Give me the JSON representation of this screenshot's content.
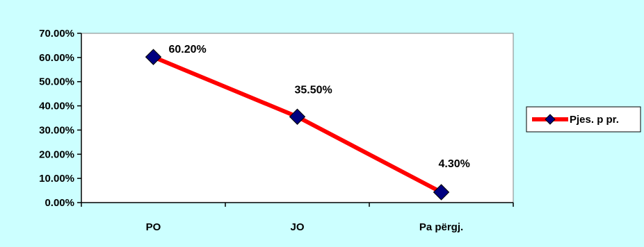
{
  "chart_data": {
    "type": "line",
    "categories": [
      "PO",
      "JO",
      "Pa përgj."
    ],
    "series": [
      {
        "name": "Pjes. p pr.",
        "values": [
          60.2,
          35.5,
          4.3
        ],
        "data_labels": [
          "60.20%",
          "35.50%",
          "4.30%"
        ],
        "line_color": "#ff0000",
        "marker_color": "#000080",
        "marker": "diamond"
      }
    ],
    "y_ticks": [
      0,
      10,
      20,
      30,
      40,
      50,
      60,
      70
    ],
    "y_tick_labels": [
      "0.00%",
      "10.00%",
      "20.00%",
      "30.00%",
      "40.00%",
      "50.00%",
      "60.00%",
      "70.00%"
    ],
    "ylim": [
      0,
      70
    ],
    "grid": false,
    "legend_position": "right",
    "background_color": "#ccffff",
    "plot_area_color": "#ffffff",
    "title": "",
    "xlabel": "",
    "ylabel": ""
  }
}
